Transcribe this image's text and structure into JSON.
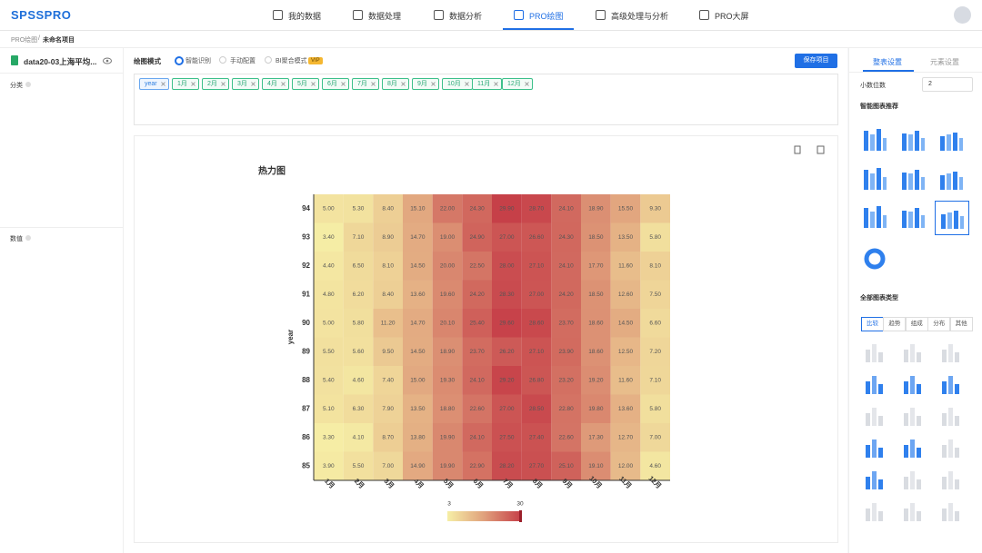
{
  "nav": {
    "logo": "SPSSPRO",
    "items": [
      "我的数据",
      "数据处理",
      "数据分析",
      "PRO绘图",
      "高级处理与分析",
      "PRO大屏"
    ]
  },
  "breadcrumb": {
    "parent": "PRO绘图",
    "separator": "/",
    "current": "未命名项目"
  },
  "left_panel": {
    "file": "data20-03上海平均...",
    "fields": [
      "分类",
      "数值"
    ]
  },
  "toolbar": {
    "mode_label": "绘图模式",
    "modes": [
      "智能识别",
      "手动配置",
      "BI聚合模式"
    ],
    "vip": "VIP",
    "save": "保存项目"
  },
  "tags": [
    "year",
    "1月",
    "2月",
    "3月",
    "4月",
    "5月",
    "6月",
    "7月",
    "8月",
    "9月",
    "10月",
    "11月",
    "12月"
  ],
  "chart_data": {
    "type": "heatmap",
    "title": "热力图",
    "y_label": "year",
    "x_categories": [
      "1月",
      "2月",
      "3月",
      "4月",
      "5月",
      "6月",
      "7月",
      "8月",
      "9月",
      "10月",
      "11月",
      "12月"
    ],
    "y_categories": [
      "94",
      "93",
      "92",
      "91",
      "90",
      "89",
      "88",
      "87",
      "86",
      "85"
    ],
    "values": [
      [
        5.0,
        5.3,
        8.4,
        15.1,
        22.0,
        24.3,
        29.9,
        28.7,
        24.1,
        18.9,
        15.5,
        9.3
      ],
      [
        3.4,
        7.1,
        8.9,
        14.7,
        19.0,
        24.9,
        27.0,
        26.6,
        24.3,
        18.5,
        13.5,
        5.8
      ],
      [
        4.4,
        6.5,
        8.1,
        14.5,
        20.0,
        22.5,
        28.0,
        27.1,
        24.1,
        17.7,
        11.6,
        8.1
      ],
      [
        4.8,
        6.2,
        8.4,
        13.6,
        19.6,
        24.2,
        28.3,
        27.0,
        24.2,
        18.5,
        12.6,
        7.5
      ],
      [
        5.0,
        5.8,
        11.2,
        14.7,
        20.1,
        25.4,
        29.6,
        28.6,
        23.7,
        18.6,
        14.5,
        6.6
      ],
      [
        5.5,
        5.6,
        9.5,
        14.5,
        18.9,
        23.7,
        26.2,
        27.1,
        23.9,
        18.6,
        12.5,
        7.2
      ],
      [
        5.4,
        4.6,
        7.4,
        15.0,
        19.3,
        24.1,
        29.2,
        26.8,
        23.2,
        19.2,
        11.6,
        7.1
      ],
      [
        5.1,
        6.3,
        7.9,
        13.5,
        18.8,
        22.6,
        27.0,
        28.5,
        22.8,
        19.8,
        13.6,
        5.8
      ],
      [
        3.3,
        4.1,
        8.7,
        13.8,
        19.9,
        24.1,
        27.5,
        27.4,
        22.6,
        17.3,
        12.7,
        7.0
      ],
      [
        3.9,
        5.5,
        7.0,
        14.9,
        19.9,
        22.9,
        28.2,
        27.7,
        25.1,
        19.1,
        12.0,
        4.6
      ]
    ],
    "value_labels": [
      [
        "5.00",
        "5.30",
        "8.40",
        "15.10",
        "22.00",
        "24.30",
        "29.90",
        "28.70",
        "24.10",
        "18.90",
        "15.50",
        "9.30"
      ],
      [
        "3.40",
        "7.10",
        "8.90",
        "14.70",
        "19.00",
        "24.90",
        "27.00",
        "26.60",
        "24.30",
        "18.50",
        "13.50",
        "5.80"
      ],
      [
        "4.40",
        "6.50",
        "8.10",
        "14.50",
        "20.00",
        "22.50",
        "28.00",
        "27.10",
        "24.10",
        "17.70",
        "11.60",
        "8.10"
      ],
      [
        "4.80",
        "6.20",
        "8.40",
        "13.60",
        "19.60",
        "24.20",
        "28.30",
        "27.00",
        "24.20",
        "18.50",
        "12.60",
        "7.50"
      ],
      [
        "5.00",
        "5.80",
        "11.20",
        "14.70",
        "20.10",
        "25.40",
        "29.60",
        "28.60",
        "23.70",
        "18.60",
        "14.50",
        "6.60"
      ],
      [
        "5.50",
        "5.60",
        "9.50",
        "14.50",
        "18.90",
        "23.70",
        "26.20",
        "27.10",
        "23.90",
        "18.60",
        "12.50",
        "7.20"
      ],
      [
        "5.40",
        "4.60",
        "7.40",
        "15.00",
        "19.30",
        "24.10",
        "29.20",
        "26.80",
        "23.20",
        "19.20",
        "11.60",
        "7.10"
      ],
      [
        "5.10",
        "6.30",
        "7.90",
        "13.50",
        "18.80",
        "22.60",
        "27.00",
        "28.50",
        "22.80",
        "19.80",
        "13.60",
        "5.80"
      ],
      [
        "3.30",
        "4.10",
        "8.70",
        "13.80",
        "19.90",
        "24.10",
        "27.50",
        "27.40",
        "22.60",
        "17.30",
        "12.70",
        "7.00"
      ],
      [
        "3.90",
        "5.50",
        "7.00",
        "14.90",
        "19.90",
        "22.90",
        "28.20",
        "27.70",
        "25.10",
        "19.10",
        "12.00",
        "4.60"
      ]
    ],
    "visual_map": {
      "min": 3,
      "max": 30,
      "colors": [
        "#f6efa6",
        "#e0a07c",
        "#c63f48"
      ]
    }
  },
  "right_panel": {
    "tabs": [
      "整表设置",
      "元素设置"
    ],
    "decimal_label": "小数位数",
    "decimal_value": "2",
    "recommend": "智能图表推荐",
    "all_types": "全部图表类型",
    "type_tabs": [
      "比较",
      "趋势",
      "组成",
      "分布",
      "其他"
    ]
  }
}
